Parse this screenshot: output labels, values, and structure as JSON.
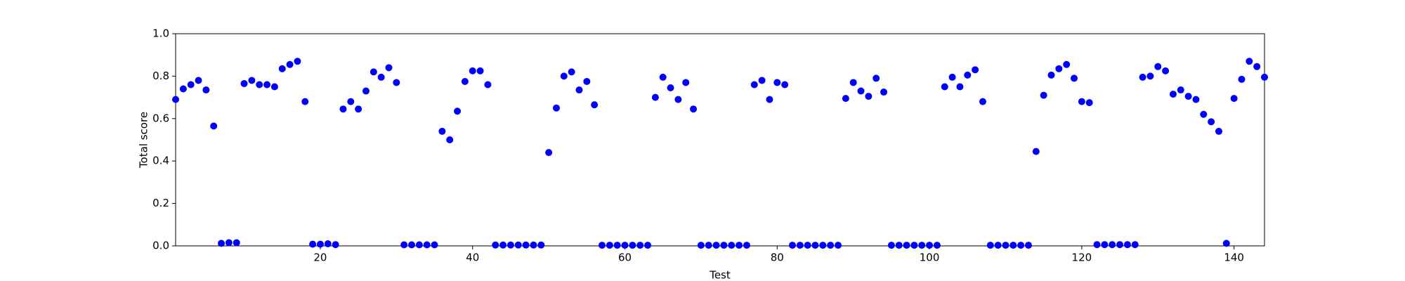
{
  "chart_data": {
    "type": "scatter",
    "xlabel": "Test",
    "ylabel": "Total score",
    "color": "#0000ff",
    "xlim": [
      1,
      144
    ],
    "ylim": [
      0,
      1
    ],
    "xticks": [
      20,
      40,
      60,
      80,
      100,
      120,
      140
    ],
    "yticks": [
      {
        "value": 0,
        "label": "0.0"
      },
      0.2,
      0.4,
      0.6,
      0.8,
      {
        "value": 1,
        "label": "1.0"
      }
    ],
    "x": [
      1,
      2,
      3,
      4,
      5,
      6,
      7,
      8,
      9,
      10,
      11,
      12,
      13,
      14,
      15,
      16,
      17,
      18,
      19,
      20,
      21,
      22,
      23,
      24,
      25,
      26,
      27,
      28,
      29,
      30,
      31,
      32,
      33,
      34,
      35,
      36,
      37,
      38,
      39,
      40,
      41,
      42,
      43,
      44,
      45,
      46,
      47,
      48,
      49,
      50,
      51,
      52,
      53,
      54,
      55,
      56,
      57,
      58,
      59,
      60,
      61,
      62,
      63,
      64,
      65,
      66,
      67,
      68,
      69,
      70,
      71,
      72,
      73,
      74,
      75,
      76,
      77,
      78,
      79,
      80,
      81,
      82,
      83,
      84,
      85,
      86,
      87,
      88,
      89,
      90,
      91,
      92,
      93,
      94,
      95,
      96,
      97,
      98,
      99,
      100,
      101,
      102,
      103,
      104,
      105,
      106,
      107,
      108,
      109,
      110,
      111,
      112,
      113,
      114,
      115,
      116,
      117,
      118,
      119,
      120,
      121,
      122,
      123,
      124,
      125,
      126,
      127,
      128,
      129,
      130,
      131,
      132,
      133,
      134,
      135,
      136,
      137,
      138,
      139,
      140,
      141,
      142,
      143,
      144
    ],
    "values": [
      0.69,
      0.74,
      0.76,
      0.78,
      0.735,
      0.565,
      0.012,
      0.015,
      0.015,
      0.765,
      0.78,
      0.76,
      0.76,
      0.75,
      0.835,
      0.855,
      0.87,
      0.68,
      0.008,
      0.008,
      0.01,
      0.006,
      0.645,
      0.68,
      0.645,
      0.73,
      0.82,
      0.795,
      0.84,
      0.77,
      0.005,
      0.005,
      0.005,
      0.005,
      0.005,
      0.54,
      0.5,
      0.635,
      0.775,
      0.825,
      0.825,
      0.76,
      0.004,
      0.004,
      0.004,
      0.004,
      0.004,
      0.004,
      0.004,
      0.44,
      0.65,
      0.8,
      0.82,
      0.735,
      0.775,
      0.665,
      0.003,
      0.003,
      0.003,
      0.003,
      0.003,
      0.003,
      0.003,
      0.7,
      0.795,
      0.745,
      0.69,
      0.77,
      0.645,
      0.003,
      0.003,
      0.003,
      0.003,
      0.003,
      0.003,
      0.003,
      0.76,
      0.78,
      0.69,
      0.77,
      0.76,
      0.003,
      0.003,
      0.003,
      0.003,
      0.003,
      0.003,
      0.003,
      0.695,
      0.77,
      0.73,
      0.705,
      0.79,
      0.725,
      0.003,
      0.003,
      0.003,
      0.003,
      0.003,
      0.003,
      0.003,
      0.75,
      0.795,
      0.75,
      0.805,
      0.83,
      0.68,
      0.003,
      0.003,
      0.003,
      0.003,
      0.003,
      0.003,
      0.445,
      0.71,
      0.805,
      0.835,
      0.855,
      0.79,
      0.68,
      0.675,
      0.006,
      0.006,
      0.006,
      0.006,
      0.006,
      0.006,
      0.795,
      0.8,
      0.845,
      0.825,
      0.715,
      0.735,
      0.705,
      0.69,
      0.62,
      0.585,
      0.54,
      0.012,
      0.695,
      0.785,
      0.87,
      0.845,
      0.795
    ]
  }
}
